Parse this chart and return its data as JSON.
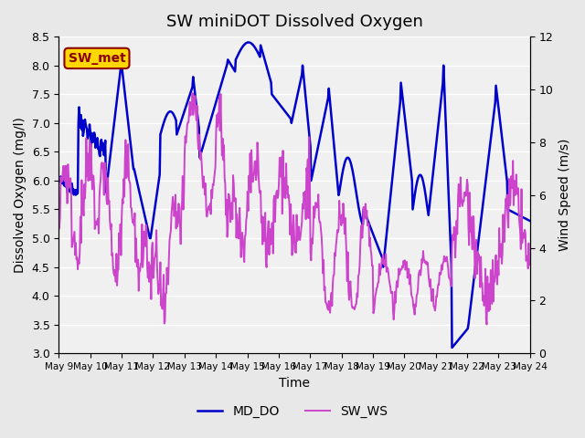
{
  "title": "SW miniDOT Dissolved Oxygen",
  "xlabel": "Time",
  "ylabel_left": "Dissolved Oxygen (mg/l)",
  "ylabel_right": "Wind Speed (m/s)",
  "annotation_text": "SW_met",
  "annotation_color": "#8B0000",
  "annotation_bg": "#FFD700",
  "line_color_do": "#0000CC",
  "line_color_ws": "#CC44CC",
  "ylim_left": [
    3.0,
    8.5
  ],
  "ylim_right": [
    0,
    12
  ],
  "yticks_left": [
    3.0,
    3.5,
    4.0,
    4.5,
    5.0,
    5.5,
    6.0,
    6.5,
    7.0,
    7.5,
    8.0,
    8.5
  ],
  "yticks_right": [
    0,
    2,
    4,
    6,
    8,
    10,
    12
  ],
  "x_tick_labels": [
    "May 9",
    "May 10",
    "May 11",
    "May 12",
    "May 13",
    "May 14",
    "May 15",
    "May 16",
    "May 17",
    "May 18",
    "May 19",
    "May 20",
    "May 21",
    "May 22",
    "May 23",
    "May 24"
  ],
  "legend_labels": [
    "MD_DO",
    "SW_WS"
  ],
  "bg_color": "#E8E8E8",
  "plot_bg_color": "#F0F0F0",
  "grid_color": "#FFFFFF",
  "linewidth_do": 1.8,
  "linewidth_ws": 1.4
}
